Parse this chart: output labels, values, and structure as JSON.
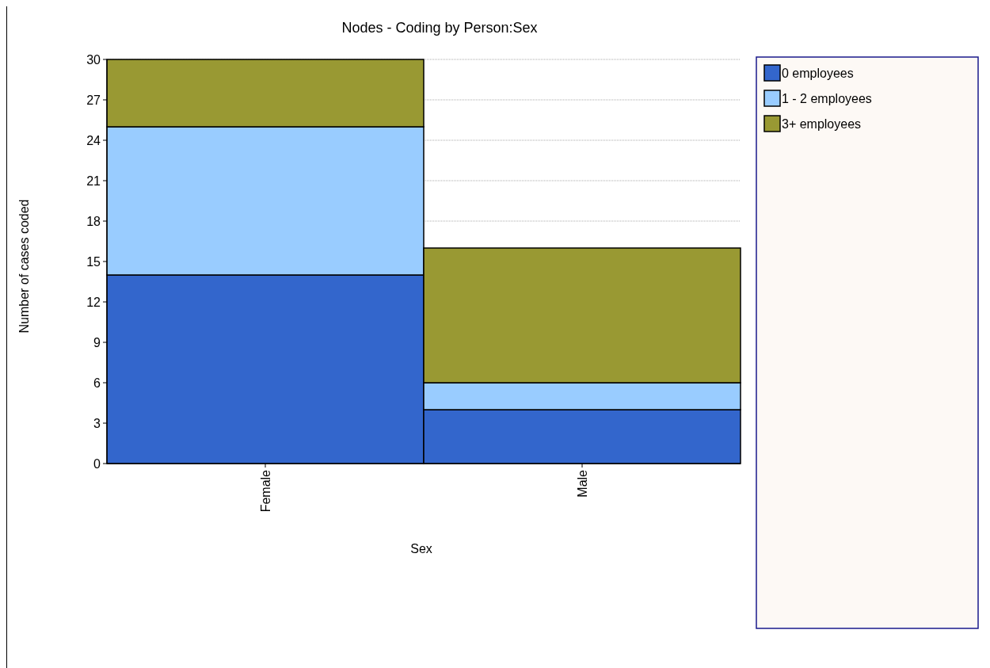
{
  "chart_data": {
    "type": "bar",
    "title": "Nodes - Coding by Person:Sex",
    "xlabel": "Sex",
    "ylabel": "Number of cases coded",
    "categories": [
      "Female",
      "Male"
    ],
    "stacked": true,
    "series": [
      {
        "name": "0 employees",
        "color": "#3366cc",
        "values": [
          14,
          4
        ]
      },
      {
        "name": "1 - 2 employees",
        "color": "#99ccff",
        "values": [
          11,
          2
        ]
      },
      {
        "name": "3+ employees",
        "color": "#999933",
        "values": [
          5,
          10
        ]
      }
    ],
    "ylim": [
      0,
      30
    ],
    "yticks": [
      0,
      3,
      6,
      9,
      12,
      15,
      18,
      21,
      24,
      27,
      30
    ],
    "grid": "y",
    "legend": "right"
  }
}
